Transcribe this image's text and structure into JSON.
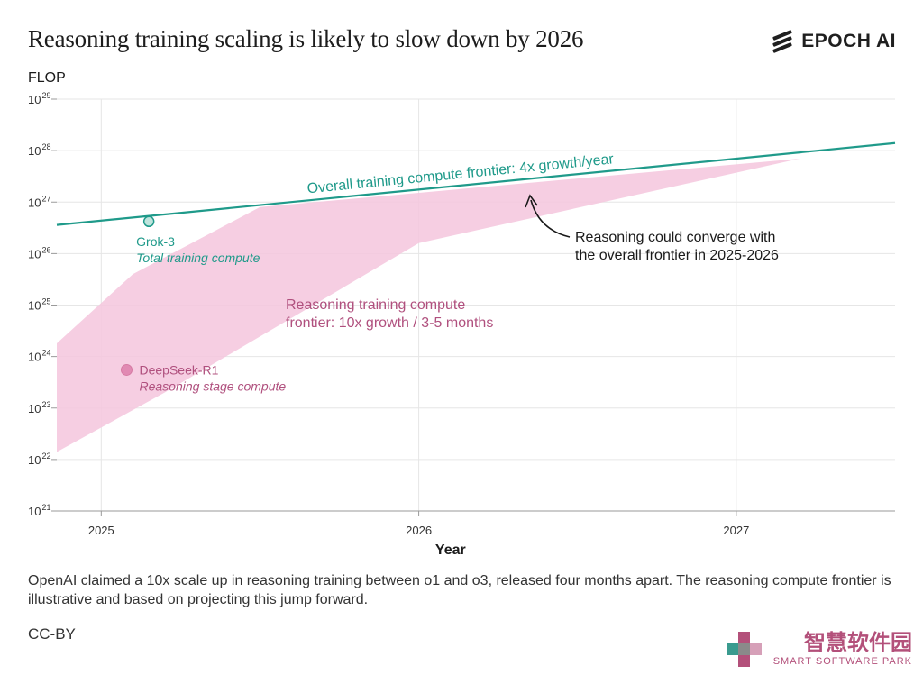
{
  "header": {
    "title": "Reasoning training scaling is likely to slow down by 2026",
    "brand": "EPOCH AI"
  },
  "caption": "OpenAI claimed a 10x scale up in reasoning training between o1 and o3, released four months apart. The reasoning compute frontier is illustrative and based on projecting this jump forward.",
  "license": "CC-BY",
  "watermark": {
    "cn": "智慧软件园",
    "en": "SMART SOFTWARE PARK"
  },
  "colors": {
    "frontier": "#1f9a8a",
    "reasoning": "#f5c5dd",
    "reasoning_text": "#b0507e",
    "point_reasoning": "#e18ab3"
  },
  "chart_data": {
    "type": "line",
    "title": "Reasoning training scaling is likely to slow down by 2026",
    "ylabel": "FLOP",
    "xlabel": "Year",
    "yscale": "log",
    "ylim": [
      1e+21,
      1e+29
    ],
    "xlim": [
      2024.86,
      2027.5
    ],
    "y_ticks": [
      {
        "value": 1e+29,
        "base": "10",
        "exp": "29"
      },
      {
        "value": 1e+28,
        "base": "10",
        "exp": "28"
      },
      {
        "value": 1e+27,
        "base": "10",
        "exp": "27"
      },
      {
        "value": 1e+26,
        "base": "10",
        "exp": "26"
      },
      {
        "value": 1e+25,
        "base": "10",
        "exp": "25"
      },
      {
        "value": 1e+24,
        "base": "10",
        "exp": "24"
      },
      {
        "value": 1e+23,
        "base": "10",
        "exp": "23"
      },
      {
        "value": 1e+22,
        "base": "10",
        "exp": "22"
      },
      {
        "value": 1e+21,
        "base": "10",
        "exp": "21"
      }
    ],
    "x_ticks": [
      {
        "value": 2025,
        "label": "2025"
      },
      {
        "value": 2026,
        "label": "2026"
      },
      {
        "value": 2027,
        "label": "2027"
      }
    ],
    "series": [
      {
        "name": "Overall training compute frontier: 4x growth/year",
        "x": [
          2024.86,
          2027.5
        ],
        "y": [
          3.6e+26,
          1.4e+28
        ]
      }
    ],
    "band": {
      "name": "Reasoning training compute frontier: 10x growth / 3-5 months",
      "upper": {
        "x": [
          2024.86,
          2025.1,
          2025.5,
          2027.2
        ],
        "y": [
          1.8e+24,
          4e+25,
          8e+26,
          7e+27
        ]
      },
      "lower": {
        "x": [
          2027.2,
          2026.0,
          2025.2,
          2024.86
        ],
        "y": [
          7e+27,
          1.6e+26,
          2e+23,
          1.4e+22
        ]
      }
    },
    "points": [
      {
        "name": "Grok-3",
        "sublabel": "Total training compute",
        "x": 2025.15,
        "y": 4.2e+26
      },
      {
        "name": "DeepSeek-R1",
        "sublabel": "Reasoning stage compute",
        "x": 2025.08,
        "y": 5.5e+23
      }
    ],
    "annotations": {
      "frontier_label": "Overall training compute frontier: 4x growth/year",
      "band_label_line1": "Reasoning training compute",
      "band_label_line2": "frontier: 10x growth / 3-5 months",
      "converge_line1": "Reasoning could converge with",
      "converge_line2": "the overall frontier in 2025-2026"
    }
  }
}
